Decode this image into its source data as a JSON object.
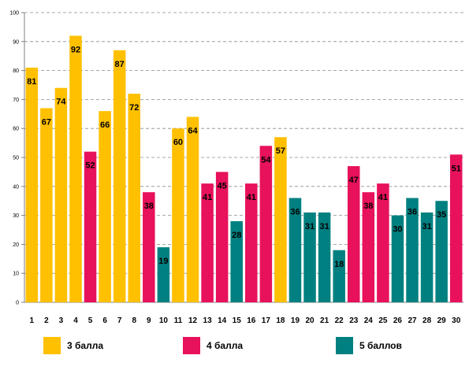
{
  "chart_data": {
    "type": "bar",
    "categories": [
      "1",
      "2",
      "3",
      "4",
      "5",
      "6",
      "7",
      "8",
      "9",
      "10",
      "11",
      "12",
      "13",
      "14",
      "15",
      "16",
      "17",
      "18",
      "19",
      "20",
      "21",
      "22",
      "23",
      "24",
      "25",
      "26",
      "27",
      "28",
      "29",
      "30"
    ],
    "values": [
      81,
      67,
      74,
      92,
      52,
      66,
      87,
      72,
      38,
      19,
      60,
      64,
      41,
      45,
      28,
      41,
      54,
      57,
      36,
      31,
      31,
      18,
      47,
      38,
      41,
      30,
      36,
      31,
      35,
      51
    ],
    "groups": [
      "3 балла",
      "3 балла",
      "3 балла",
      "3 балла",
      "4 балла",
      "3 балла",
      "3 балла",
      "3 балла",
      "4 балла",
      "5 баллов",
      "3 балла",
      "3 балла",
      "4 балла",
      "4 балла",
      "5 баллов",
      "4 балла",
      "4 балла",
      "3 балла",
      "5 баллов",
      "5 баллов",
      "5 баллов",
      "5 баллов",
      "4 балла",
      "4 балла",
      "4 балла",
      "5 баллов",
      "5 баллов",
      "5 баллов",
      "5 баллов",
      "4 балла"
    ],
    "legend": [
      {
        "name": "3 балла",
        "color": "#FFC000"
      },
      {
        "name": "4 балла",
        "color": "#E8115B"
      },
      {
        "name": "5 баллов",
        "color": "#008080"
      }
    ],
    "yticks": [
      "0",
      "10",
      "20",
      "30",
      "40",
      "50",
      "60",
      "70",
      "80",
      "90",
      "100"
    ],
    "ylim": [
      0,
      100
    ],
    "grid": true,
    "legend_position": "bottom"
  }
}
